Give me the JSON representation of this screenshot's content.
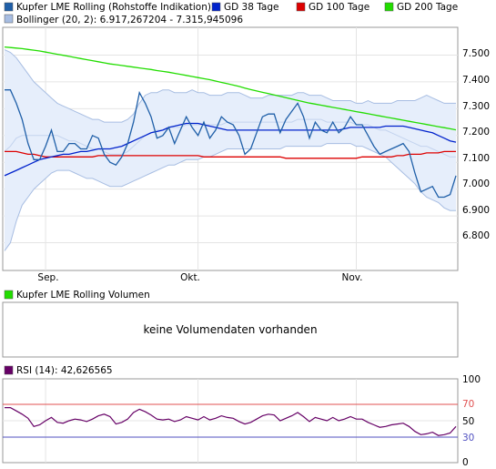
{
  "main_chart": {
    "legend": [
      {
        "label": "Kupfer LME Rolling (Rohstoffe Indikation)",
        "color": "#1f5fa8"
      },
      {
        "label": "GD 38 Tage",
        "color": "#0022cc"
      },
      {
        "label": "GD 100 Tage",
        "color": "#dd0000"
      },
      {
        "label": "GD 200 Tage",
        "color": "#22dd00"
      },
      {
        "label": "Bollinger (20, 2): 6.917,267204 - 7.315,945096",
        "color": "#a7bde2"
      }
    ],
    "y_ticks": [
      "7.500",
      "7.400",
      "7.300",
      "7.200",
      "7.100",
      "7.000",
      "6.900",
      "6.800"
    ],
    "x_labels": [
      "Sep.",
      "Okt.",
      "Nov."
    ]
  },
  "volume_panel": {
    "legend": {
      "label": "Kupfer LME Rolling Volumen",
      "color": "#22dd00"
    },
    "message": "keine Volumendaten vorhanden"
  },
  "rsi_panel": {
    "legend": {
      "label": "RSI (14): 42,626565",
      "color": "#660066"
    },
    "y_ticks": [
      "100",
      "70",
      "50",
      "30",
      "0"
    ]
  },
  "chart_data": [
    {
      "type": "line",
      "ylim": [
        6.7,
        7.6
      ],
      "x_tick_labels": [
        "Sep.",
        "Okt.",
        "Nov."
      ],
      "x_tick_index": [
        7,
        33,
        60
      ],
      "series": [
        {
          "name": "Kupfer LME Rolling (Rohstoffe Indikation)",
          "color": "#1f5fa8",
          "values": [
            7.37,
            7.37,
            7.32,
            7.26,
            7.17,
            7.11,
            7.11,
            7.16,
            7.22,
            7.14,
            7.14,
            7.17,
            7.17,
            7.15,
            7.15,
            7.2,
            7.19,
            7.13,
            7.1,
            7.09,
            7.12,
            7.17,
            7.25,
            7.36,
            7.32,
            7.27,
            7.19,
            7.2,
            7.23,
            7.17,
            7.22,
            7.27,
            7.23,
            7.2,
            7.25,
            7.19,
            7.22,
            7.27,
            7.25,
            7.24,
            7.2,
            7.13,
            7.15,
            7.21,
            7.27,
            7.28,
            7.28,
            7.21,
            7.26,
            7.29,
            7.32,
            7.27,
            7.19,
            7.25,
            7.22,
            7.21,
            7.25,
            7.21,
            7.23,
            7.27,
            7.24,
            7.24,
            7.2,
            7.16,
            7.13,
            7.14,
            7.15,
            7.16,
            7.17,
            7.14,
            7.06,
            6.99,
            7.0,
            7.01,
            6.97,
            6.97,
            6.98,
            7.05
          ]
        },
        {
          "name": "GD 38 Tage",
          "color": "#0022cc",
          "values": [
            7.05,
            7.06,
            7.07,
            7.08,
            7.09,
            7.1,
            7.11,
            7.115,
            7.12,
            7.125,
            7.13,
            7.13,
            7.135,
            7.14,
            7.14,
            7.145,
            7.15,
            7.15,
            7.15,
            7.155,
            7.16,
            7.17,
            7.18,
            7.19,
            7.2,
            7.21,
            7.215,
            7.22,
            7.23,
            7.235,
            7.24,
            7.245,
            7.245,
            7.245,
            7.24,
            7.235,
            7.23,
            7.225,
            7.22,
            7.22,
            7.22,
            7.22,
            7.22,
            7.22,
            7.22,
            7.22,
            7.22,
            7.22,
            7.22,
            7.22,
            7.22,
            7.22,
            7.22,
            7.22,
            7.22,
            7.22,
            7.22,
            7.22,
            7.225,
            7.23,
            7.23,
            7.23,
            7.23,
            7.23,
            7.23,
            7.235,
            7.235,
            7.235,
            7.235,
            7.23,
            7.225,
            7.22,
            7.215,
            7.21,
            7.2,
            7.19,
            7.18,
            7.175
          ]
        },
        {
          "name": "GD 100 Tage",
          "color": "#dd0000",
          "values": [
            7.14,
            7.14,
            7.14,
            7.135,
            7.13,
            7.13,
            7.125,
            7.12,
            7.12,
            7.12,
            7.12,
            7.12,
            7.12,
            7.12,
            7.12,
            7.12,
            7.125,
            7.125,
            7.125,
            7.125,
            7.125,
            7.125,
            7.125,
            7.125,
            7.125,
            7.125,
            7.125,
            7.125,
            7.125,
            7.125,
            7.125,
            7.125,
            7.125,
            7.125,
            7.12,
            7.12,
            7.12,
            7.12,
            7.12,
            7.12,
            7.12,
            7.12,
            7.12,
            7.12,
            7.12,
            7.12,
            7.12,
            7.12,
            7.115,
            7.115,
            7.115,
            7.115,
            7.115,
            7.115,
            7.115,
            7.115,
            7.115,
            7.115,
            7.115,
            7.115,
            7.115,
            7.12,
            7.12,
            7.12,
            7.12,
            7.12,
            7.12,
            7.125,
            7.125,
            7.13,
            7.13,
            7.13,
            7.135,
            7.135,
            7.135,
            7.14,
            7.14,
            7.14
          ]
        },
        {
          "name": "GD 200 Tage",
          "color": "#22dd00",
          "values": [
            7.53,
            7.528,
            7.526,
            7.524,
            7.521,
            7.518,
            7.515,
            7.511,
            7.507,
            7.503,
            7.499,
            7.495,
            7.491,
            7.487,
            7.483,
            7.479,
            7.475,
            7.471,
            7.467,
            7.464,
            7.461,
            7.458,
            7.455,
            7.452,
            7.449,
            7.446,
            7.442,
            7.439,
            7.436,
            7.432,
            7.428,
            7.424,
            7.42,
            7.416,
            7.412,
            7.408,
            7.403,
            7.398,
            7.393,
            7.388,
            7.383,
            7.377,
            7.371,
            7.366,
            7.361,
            7.356,
            7.351,
            7.346,
            7.341,
            7.336,
            7.331,
            7.326,
            7.321,
            7.317,
            7.313,
            7.309,
            7.305,
            7.301,
            7.297,
            7.293,
            7.289,
            7.285,
            7.281,
            7.277,
            7.273,
            7.269,
            7.265,
            7.261,
            7.257,
            7.253,
            7.249,
            7.245,
            7.241,
            7.237,
            7.233,
            7.229,
            7.225,
            7.221
          ]
        },
        {
          "name": "Bollinger (20, 2) upper",
          "color": "#a7bde2",
          "values": [
            7.52,
            7.51,
            7.49,
            7.46,
            7.43,
            7.4,
            7.38,
            7.36,
            7.34,
            7.32,
            7.31,
            7.3,
            7.29,
            7.28,
            7.27,
            7.26,
            7.26,
            7.25,
            7.25,
            7.25,
            7.25,
            7.26,
            7.28,
            7.32,
            7.35,
            7.36,
            7.36,
            7.37,
            7.37,
            7.36,
            7.36,
            7.36,
            7.37,
            7.36,
            7.36,
            7.35,
            7.35,
            7.35,
            7.36,
            7.36,
            7.36,
            7.35,
            7.34,
            7.34,
            7.34,
            7.35,
            7.35,
            7.35,
            7.35,
            7.35,
            7.36,
            7.36,
            7.35,
            7.35,
            7.35,
            7.34,
            7.33,
            7.33,
            7.33,
            7.33,
            7.32,
            7.32,
            7.33,
            7.32,
            7.32,
            7.32,
            7.32,
            7.33,
            7.33,
            7.33,
            7.33,
            7.34,
            7.35,
            7.34,
            7.33,
            7.32,
            7.32,
            7.32
          ]
        },
        {
          "name": "Bollinger (20, 2) lower",
          "color": "#a7bde2",
          "values": [
            6.77,
            6.8,
            6.88,
            6.94,
            6.97,
            7.0,
            7.02,
            7.04,
            7.06,
            7.07,
            7.07,
            7.07,
            7.06,
            7.05,
            7.04,
            7.04,
            7.03,
            7.02,
            7.01,
            7.01,
            7.01,
            7.02,
            7.03,
            7.04,
            7.05,
            7.06,
            7.07,
            7.08,
            7.09,
            7.09,
            7.1,
            7.11,
            7.11,
            7.11,
            7.12,
            7.12,
            7.13,
            7.14,
            7.15,
            7.15,
            7.15,
            7.15,
            7.15,
            7.15,
            7.15,
            7.15,
            7.15,
            7.15,
            7.16,
            7.16,
            7.16,
            7.16,
            7.16,
            7.16,
            7.16,
            7.17,
            7.17,
            7.17,
            7.17,
            7.17,
            7.16,
            7.16,
            7.15,
            7.14,
            7.13,
            7.12,
            7.1,
            7.08,
            7.06,
            7.04,
            7.02,
            6.99,
            6.97,
            6.96,
            6.95,
            6.93,
            6.92,
            6.92
          ]
        },
        {
          "name": "Bollinger (20, 2) middle",
          "color": "#a7bde2",
          "values": [
            7.14,
            7.16,
            7.19,
            7.2,
            7.2,
            7.2,
            7.2,
            7.2,
            7.2,
            7.2,
            7.19,
            7.18,
            7.18,
            7.17,
            7.16,
            7.15,
            7.15,
            7.14,
            7.13,
            7.13,
            7.13,
            7.14,
            7.16,
            7.18,
            7.2,
            7.21,
            7.22,
            7.22,
            7.23,
            7.23,
            7.23,
            7.24,
            7.24,
            7.24,
            7.24,
            7.24,
            7.24,
            7.24,
            7.25,
            7.25,
            7.25,
            7.25,
            7.25,
            7.25,
            7.25,
            7.25,
            7.25,
            7.25,
            7.25,
            7.25,
            7.26,
            7.26,
            7.26,
            7.26,
            7.26,
            7.25,
            7.25,
            7.25,
            7.25,
            7.25,
            7.24,
            7.24,
            7.24,
            7.23,
            7.22,
            7.22,
            7.21,
            7.2,
            7.19,
            7.18,
            7.17,
            7.16,
            7.16,
            7.15,
            7.14,
            7.13,
            7.12,
            7.12
          ]
        }
      ]
    },
    {
      "type": "line",
      "ylim": [
        0,
        100
      ],
      "reference_lines": [
        70,
        30
      ],
      "series": [
        {
          "name": "RSI (14)",
          "color": "#660066",
          "values": [
            66,
            66,
            62,
            58,
            53,
            43,
            45,
            50,
            54,
            48,
            47,
            50,
            52,
            51,
            49,
            52,
            56,
            58,
            55,
            46,
            48,
            52,
            60,
            64,
            61,
            57,
            52,
            51,
            52,
            49,
            51,
            55,
            53,
            51,
            55,
            51,
            53,
            56,
            54,
            53,
            49,
            46,
            48,
            52,
            56,
            58,
            57,
            50,
            53,
            56,
            60,
            55,
            49,
            54,
            52,
            50,
            54,
            50,
            52,
            55,
            52,
            52,
            48,
            45,
            42,
            43,
            45,
            46,
            47,
            43,
            37,
            33,
            34,
            36,
            32,
            33,
            35,
            43
          ]
        }
      ]
    }
  ]
}
